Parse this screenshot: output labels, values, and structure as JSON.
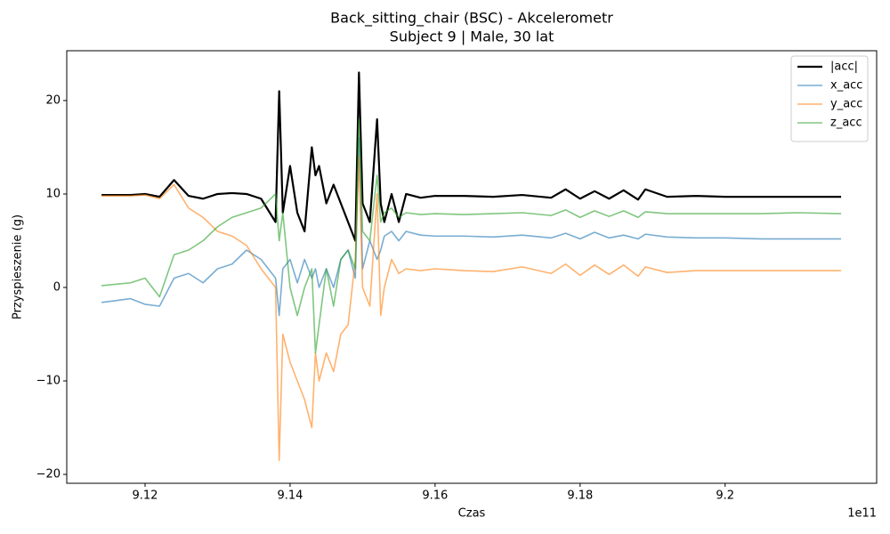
{
  "chart_data": {
    "type": "line",
    "title": "Back_sitting_chair (BSC) - Akcelerometr",
    "subtitle": "Subject 9 | Male, 30 lat",
    "x_label": "Czas",
    "y_label": "Przyspieszenie (g)",
    "x_offset_label": "1e11",
    "x": [
      9.114,
      9.118,
      9.12,
      9.122,
      9.124,
      9.126,
      9.128,
      9.13,
      9.132,
      9.134,
      9.136,
      9.138,
      9.1385,
      9.139,
      9.14,
      9.141,
      9.142,
      9.143,
      9.1435,
      9.144,
      9.145,
      9.146,
      9.147,
      9.148,
      9.149,
      9.1495,
      9.15,
      9.151,
      9.152,
      9.1525,
      9.153,
      9.154,
      9.155,
      9.156,
      9.158,
      9.16,
      9.164,
      9.168,
      9.172,
      9.176,
      9.178,
      9.18,
      9.182,
      9.184,
      9.186,
      9.188,
      9.189,
      9.192,
      9.196,
      9.2,
      9.205,
      9.21,
      9.216
    ],
    "series": [
      {
        "name": "|acc|",
        "color": "#000000",
        "width": 2.2,
        "opacity": 1,
        "values": [
          9.9,
          9.9,
          10.0,
          9.7,
          11.5,
          9.8,
          9.5,
          10.0,
          10.1,
          10.0,
          9.5,
          7.0,
          21,
          8,
          13,
          8,
          6,
          15,
          12,
          13,
          9,
          11,
          9,
          7,
          5,
          23,
          9,
          7,
          18,
          9,
          7,
          10,
          7,
          10,
          9.6,
          9.8,
          9.8,
          9.7,
          9.9,
          9.6,
          10.5,
          9.5,
          10.3,
          9.5,
          10.4,
          9.4,
          10.5,
          9.7,
          9.8,
          9.7,
          9.7,
          9.7,
          9.7
        ]
      },
      {
        "name": "x_acc",
        "color": "#1f77b4",
        "width": 1.6,
        "opacity": 0.6,
        "values": [
          -1.6,
          -1.2,
          -1.8,
          -2.0,
          1.0,
          1.5,
          0.5,
          2.0,
          2.5,
          4,
          3,
          1,
          -3,
          2,
          3,
          0.5,
          3,
          1,
          2,
          0,
          2,
          0,
          3,
          4,
          1,
          16,
          2,
          5,
          3,
          4,
          5.5,
          6,
          5,
          6,
          5.6,
          5.5,
          5.5,
          5.4,
          5.6,
          5.3,
          5.8,
          5.2,
          5.9,
          5.3,
          5.6,
          5.2,
          5.7,
          5.4,
          5.3,
          5.3,
          5.2,
          5.2,
          5.2
        ]
      },
      {
        "name": "y_acc",
        "color": "#ff7f0e",
        "width": 1.6,
        "opacity": 0.6,
        "values": [
          9.8,
          9.8,
          9.9,
          9.5,
          11.0,
          8.5,
          7.5,
          6,
          5.5,
          4.5,
          2,
          0,
          -18.5,
          -5,
          -8,
          -10,
          -12,
          -15,
          -7,
          -10,
          -7,
          -9,
          -5,
          -4,
          3,
          14,
          0,
          -2,
          10,
          -3,
          0,
          3,
          1.5,
          2.0,
          1.8,
          2.0,
          1.8,
          1.7,
          2.2,
          1.5,
          2.5,
          1.3,
          2.4,
          1.4,
          2.4,
          1.2,
          2.2,
          1.6,
          1.8,
          1.8,
          1.8,
          1.8,
          1.8
        ]
      },
      {
        "name": "z_acc",
        "color": "#2ca02c",
        "width": 1.6,
        "opacity": 0.6,
        "values": [
          0.2,
          0.5,
          1.0,
          -1.0,
          3.5,
          4.0,
          5.0,
          6.5,
          7.5,
          8.0,
          8.5,
          10,
          5,
          8,
          0,
          -3,
          0,
          2,
          -7,
          -4,
          2,
          -2,
          3,
          4,
          2,
          18,
          6,
          5,
          12,
          7,
          8,
          8.5,
          7.5,
          8,
          7.8,
          7.9,
          7.8,
          7.9,
          8.0,
          7.7,
          8.3,
          7.5,
          8.2,
          7.6,
          8.2,
          7.5,
          8.1,
          7.9,
          7.9,
          7.9,
          7.9,
          8.0,
          7.9
        ]
      }
    ],
    "xlim": [
      9.1092,
      9.2209
    ],
    "xticks": [
      9.12,
      9.14,
      9.16,
      9.18,
      9.2
    ],
    "ylim": [
      -20.95,
      25.33
    ],
    "yticks": [
      {
        "value": -20,
        "label": "−20"
      },
      {
        "value": -10,
        "label": "−10"
      },
      0,
      10,
      20
    ],
    "legend": "upper right",
    "grid": false
  }
}
